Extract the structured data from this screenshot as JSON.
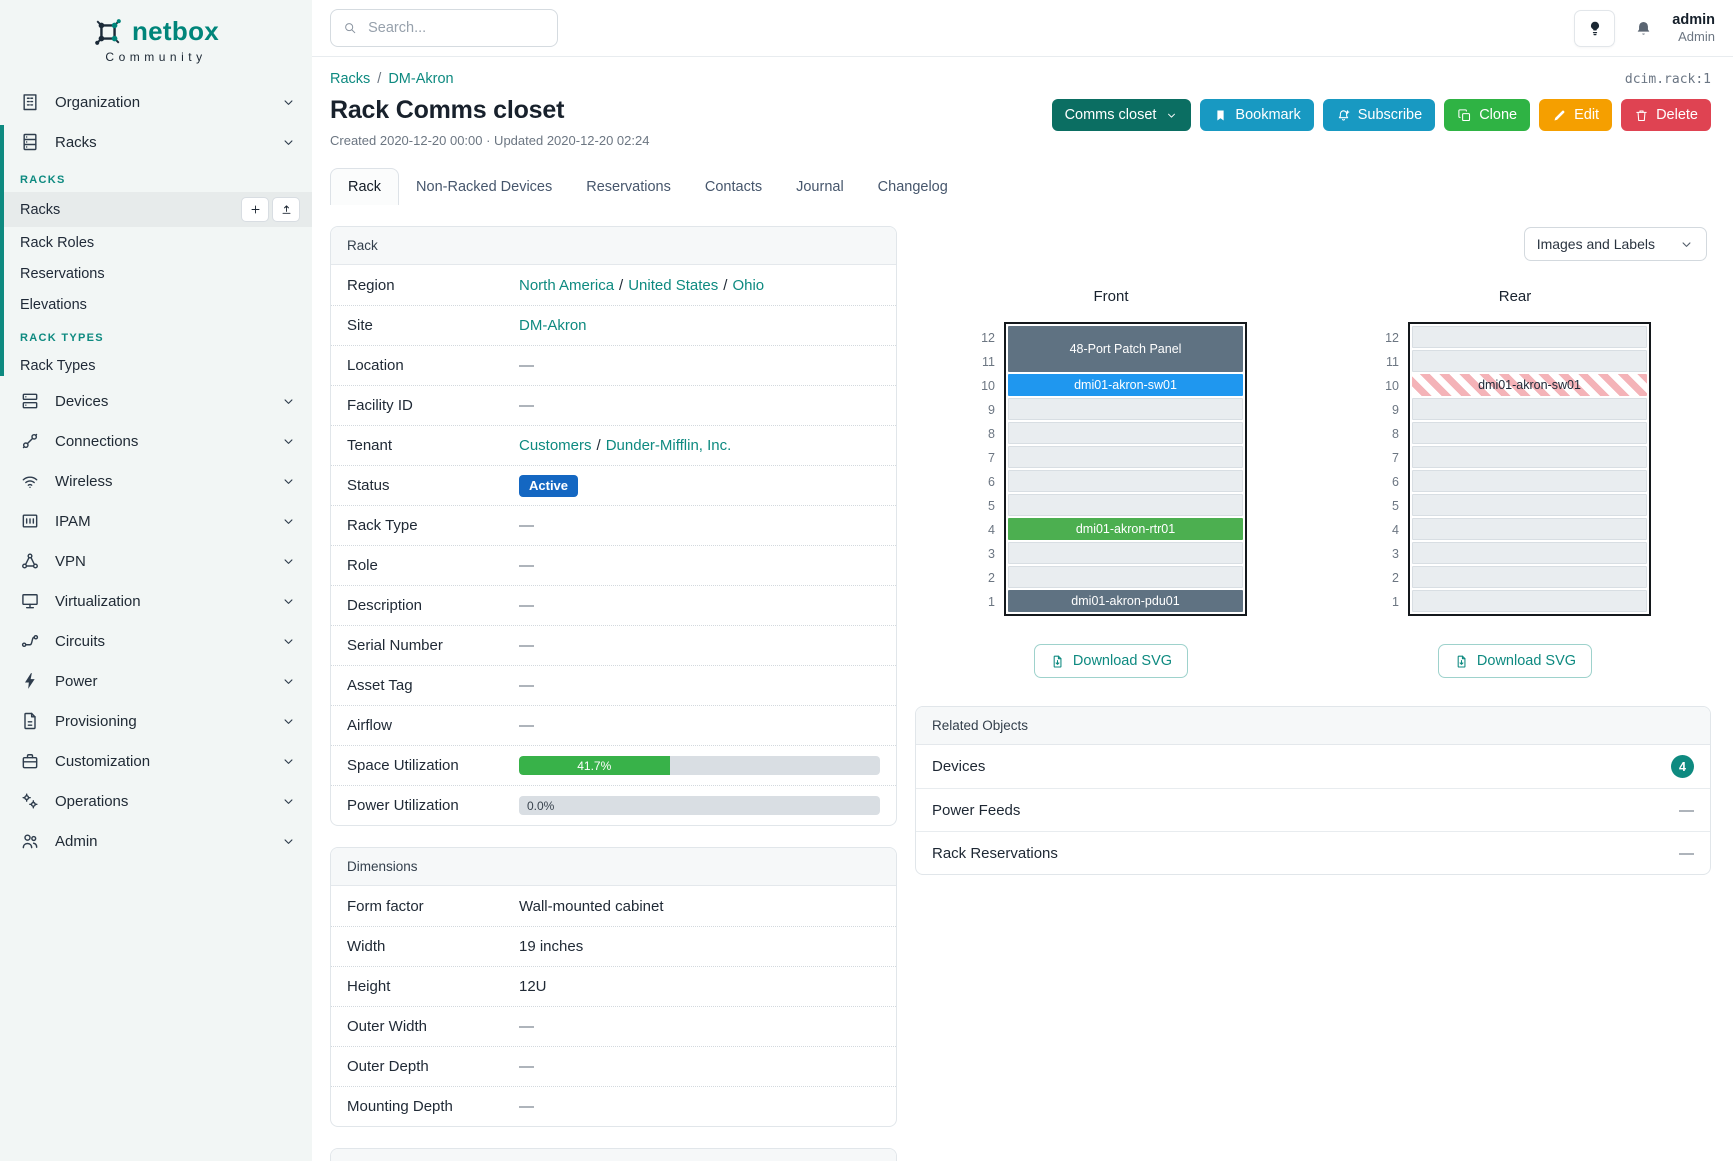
{
  "sidebar": {
    "logo_text": "netbox",
    "logo_subtext": "Community",
    "nav": [
      {
        "type": "item",
        "label": "Organization",
        "icon": "building"
      },
      {
        "type": "group",
        "item": {
          "label": "Racks",
          "icon": "rack"
        },
        "sections": [
          {
            "title": "RACKS",
            "items": [
              {
                "label": "Racks",
                "active": true,
                "actions": [
                  {
                    "icon": "plus",
                    "name": "add"
                  },
                  {
                    "icon": "upload",
                    "name": "import"
                  }
                ]
              },
              {
                "label": "Rack Roles"
              },
              {
                "label": "Reservations"
              },
              {
                "label": "Elevations"
              }
            ]
          },
          {
            "title": "RACK TYPES",
            "items": [
              {
                "label": "Rack Types"
              }
            ]
          }
        ]
      },
      {
        "type": "item",
        "label": "Devices",
        "icon": "devices"
      },
      {
        "type": "item",
        "label": "Connections",
        "icon": "plug"
      },
      {
        "type": "item",
        "label": "Wireless",
        "icon": "wifi"
      },
      {
        "type": "item",
        "label": "IPAM",
        "icon": "ipam"
      },
      {
        "type": "item",
        "label": "VPN",
        "icon": "vpn"
      },
      {
        "type": "item",
        "label": "Virtualization",
        "icon": "monitor"
      },
      {
        "type": "item",
        "label": "Circuits",
        "icon": "circuits"
      },
      {
        "type": "item",
        "label": "Power",
        "icon": "bolt"
      },
      {
        "type": "item",
        "label": "Provisioning",
        "icon": "doc"
      },
      {
        "type": "item",
        "label": "Customization",
        "icon": "briefcase"
      },
      {
        "type": "item",
        "label": "Operations",
        "icon": "gears"
      },
      {
        "type": "item",
        "label": "Admin",
        "icon": "users"
      }
    ]
  },
  "topbar": {
    "search_placeholder": "Search...",
    "user_name": "admin",
    "user_role": "Admin"
  },
  "page": {
    "object_id": "dcim.rack:1",
    "breadcrumb": [
      "Racks",
      "DM-Akron"
    ],
    "title": "Rack Comms closet",
    "meta": "Created 2020-12-20 00:00 · Updated 2020-12-20 02:24",
    "actions": [
      {
        "name": "comms-closet",
        "label": "Comms closet",
        "color": "#0b6e62",
        "chevron": true
      },
      {
        "name": "bookmark",
        "label": "Bookmark",
        "color": "#1899c2",
        "icon": "bookmark"
      },
      {
        "name": "subscribe",
        "label": "Subscribe",
        "color": "#1899c2",
        "icon": "bellplus"
      },
      {
        "name": "clone",
        "label": "Clone",
        "color": "#2fb344",
        "icon": "copy"
      },
      {
        "name": "edit",
        "label": "Edit",
        "color": "#f59f00",
        "icon": "pencil"
      },
      {
        "name": "delete",
        "label": "Delete",
        "color": "#df4352",
        "icon": "trash"
      }
    ],
    "tabs": [
      {
        "label": "Rack",
        "active": true
      },
      {
        "label": "Non-Racked Devices",
        "active": false
      },
      {
        "label": "Reservations",
        "active": false
      },
      {
        "label": "Contacts",
        "active": false
      },
      {
        "label": "Journal",
        "active": false
      },
      {
        "label": "Changelog",
        "active": false
      }
    ]
  },
  "rack_panel": {
    "title": "Rack",
    "rows": [
      {
        "label": "Region",
        "type": "links",
        "links": [
          "North America",
          "United States",
          "Ohio"
        ]
      },
      {
        "label": "Site",
        "type": "links",
        "links": [
          "DM-Akron"
        ]
      },
      {
        "label": "Location",
        "type": "text",
        "value": "—"
      },
      {
        "label": "Facility ID",
        "type": "text",
        "value": "—"
      },
      {
        "label": "Tenant",
        "type": "links",
        "links": [
          "Customers",
          "Dunder-Mifflin, Inc."
        ]
      },
      {
        "label": "Status",
        "type": "badge",
        "value": "Active",
        "color": "#1467c2"
      },
      {
        "label": "Rack Type",
        "type": "text",
        "value": "—"
      },
      {
        "label": "Role",
        "type": "text",
        "value": "—"
      },
      {
        "label": "Description",
        "type": "text",
        "value": "—"
      },
      {
        "label": "Serial Number",
        "type": "text",
        "value": "—"
      },
      {
        "label": "Asset Tag",
        "type": "text",
        "value": "—"
      },
      {
        "label": "Airflow",
        "type": "text",
        "value": "—"
      },
      {
        "label": "Space Utilization",
        "type": "progress",
        "percent": 41.7,
        "display": "41.7%",
        "color": "#38b249"
      },
      {
        "label": "Power Utilization",
        "type": "progress",
        "percent": 0,
        "display": "0.0%",
        "color": "#38b249"
      }
    ]
  },
  "dimensions_panel": {
    "title": "Dimensions",
    "rows": [
      {
        "label": "Form factor",
        "type": "text",
        "value": "Wall-mounted cabinet",
        "dark": true
      },
      {
        "label": "Width",
        "type": "text",
        "value": "19 inches",
        "dark": true
      },
      {
        "label": "Height",
        "type": "text",
        "value": "12U",
        "dark": true
      },
      {
        "label": "Outer Width",
        "type": "text",
        "value": "—"
      },
      {
        "label": "Outer Depth",
        "type": "text",
        "value": "—"
      },
      {
        "label": "Mounting Depth",
        "type": "text",
        "value": "—"
      }
    ]
  },
  "elevations": {
    "view_mode_label": "Images and Labels",
    "unit_count": 12,
    "front": {
      "title": "Front",
      "download_label": "Download SVG",
      "devices": [
        {
          "top_unit": 12,
          "u_span": 2,
          "label": "48-Port Patch Panel",
          "color": "#5f7282",
          "text_color": "#ffffff"
        },
        {
          "top_unit": 10,
          "u_span": 1,
          "label": "dmi01-akron-sw01",
          "color": "#1f97ef",
          "text_color": "#ffffff"
        },
        {
          "top_unit": 4,
          "u_span": 1,
          "label": "dmi01-akron-rtr01",
          "color": "#4caf50",
          "text_color": "#ffffff"
        },
        {
          "top_unit": 1,
          "u_span": 1,
          "label": "dmi01-akron-pdu01",
          "color": "#5f7282",
          "text_color": "#ffffff"
        }
      ]
    },
    "rear": {
      "title": "Rear",
      "download_label": "Download SVG",
      "devices": [
        {
          "top_unit": 10,
          "u_span": 1,
          "label": "dmi01-akron-sw01",
          "striped": true,
          "text_color": "#1f2937"
        }
      ]
    }
  },
  "related_objects": {
    "title": "Related Objects",
    "badge_color": "#0e8a80",
    "rows": [
      {
        "label": "Devices",
        "badge": "4"
      },
      {
        "label": "Power Feeds",
        "value": "—"
      },
      {
        "label": "Rack Reservations",
        "value": "—"
      }
    ]
  }
}
